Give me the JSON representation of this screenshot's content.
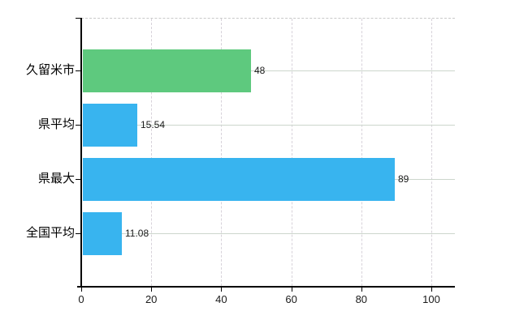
{
  "chart_data": {
    "type": "bar",
    "orientation": "horizontal",
    "title": "",
    "xlabel": "",
    "ylabel": "",
    "categories": [
      "久留米市",
      "県平均",
      "県最大",
      "全国平均"
    ],
    "values": [
      48,
      15.54,
      89,
      11.08
    ],
    "value_labels": [
      "48",
      "15.54",
      "89",
      "11.08"
    ],
    "bar_colors": [
      "#5ec97e",
      "#38b4ef",
      "#38b4ef",
      "#38b4ef"
    ],
    "x_tick_values": [
      0,
      20,
      40,
      60,
      80,
      100
    ],
    "x_tick_labels": [
      "0",
      "20",
      "40",
      "60",
      "80",
      "100"
    ],
    "xlim": [
      0,
      106.7
    ],
    "grid": true,
    "legend": false,
    "colors": {
      "axis": "#000000",
      "grid_horizontal": "#ccd6cc",
      "grid_vertical": "#d7d2da",
      "plot_top_border": "#c9c9c9",
      "text": "#1a1a1a",
      "category_text": "#000000",
      "background": "#ffffff"
    }
  }
}
